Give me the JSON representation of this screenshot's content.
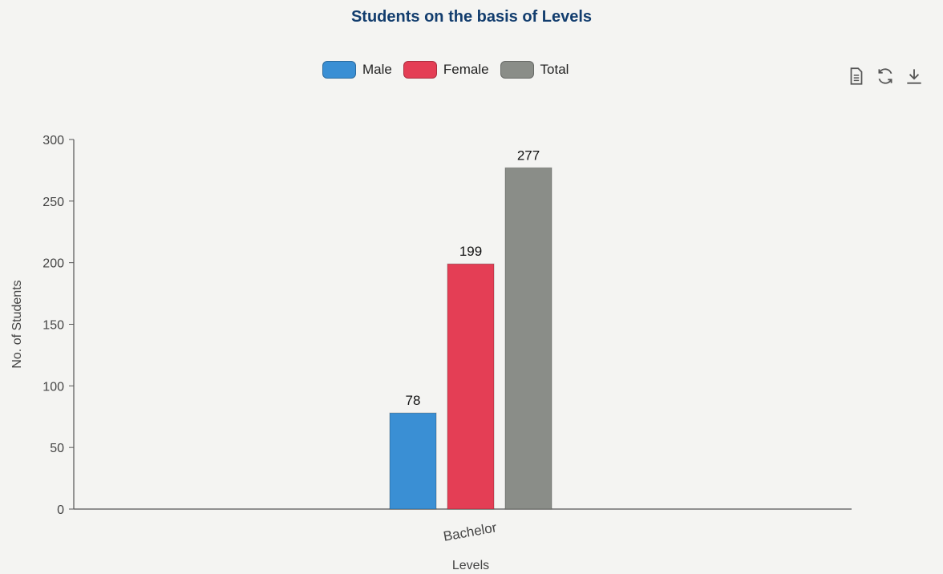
{
  "chart_data": {
    "type": "bar",
    "title": "Students on the basis of Levels",
    "xlabel": "Levels",
    "ylabel": "No. of Students",
    "categories": [
      "Bachelor"
    ],
    "series": [
      {
        "name": "Male",
        "values": [
          78
        ],
        "color": "#3a8fd4"
      },
      {
        "name": "Female",
        "values": [
          199
        ],
        "color": "#e43e55"
      },
      {
        "name": "Total",
        "values": [
          277
        ],
        "color": "#8a8d88"
      }
    ],
    "ylim": [
      0,
      300
    ],
    "yticks": [
      0,
      50,
      100,
      150,
      200,
      250,
      300
    ],
    "grid": false,
    "legend_position": "top-center"
  },
  "toolbar": {
    "icons": [
      "document-icon",
      "refresh-icon",
      "download-icon"
    ]
  }
}
